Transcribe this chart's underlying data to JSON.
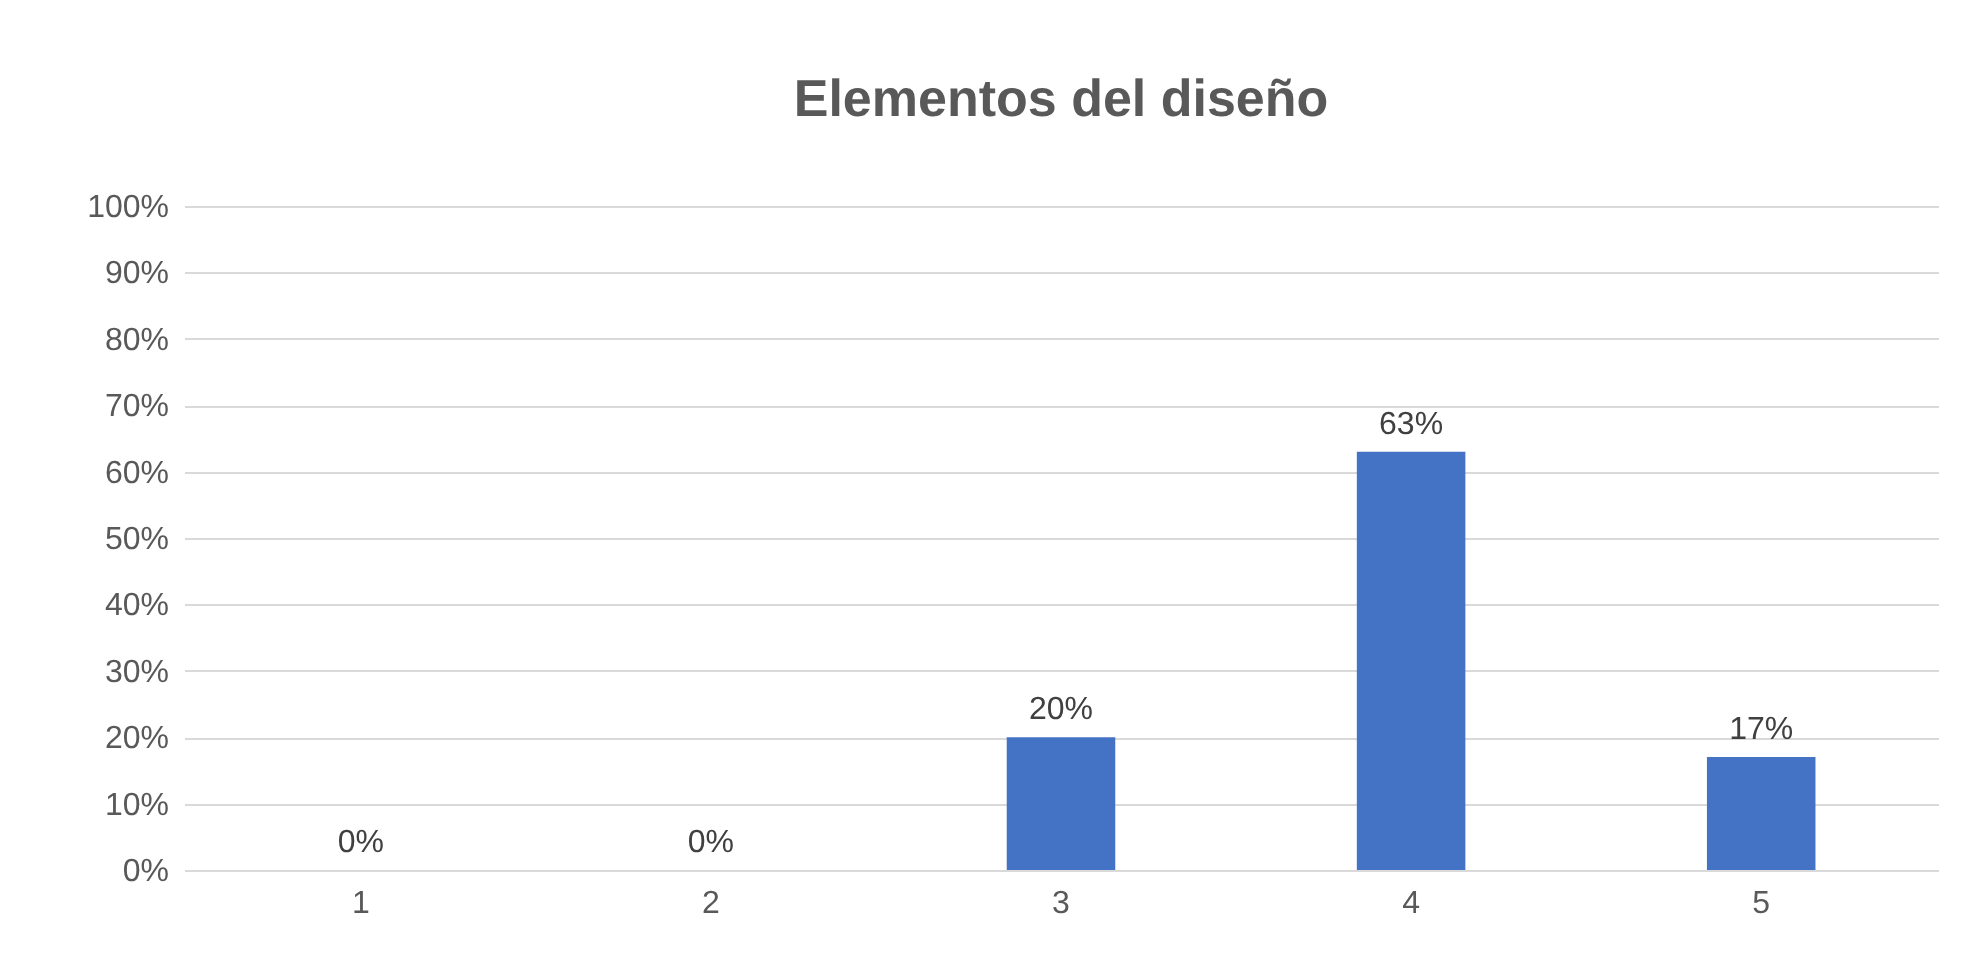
{
  "chart_data": {
    "type": "bar",
    "title": "Elementos del diseño",
    "categories": [
      "1",
      "2",
      "3",
      "4",
      "5"
    ],
    "values": [
      0,
      0,
      20,
      63,
      17
    ],
    "value_labels": [
      "0%",
      "0%",
      "20%",
      "63%",
      "17%"
    ],
    "color": "#4472c4",
    "ylim": [
      0,
      100
    ],
    "yticks": [
      {
        "value": 0,
        "label": "0%"
      },
      {
        "value": 10,
        "label": "10%"
      },
      {
        "value": 20,
        "label": "20%"
      },
      {
        "value": 30,
        "label": "30%"
      },
      {
        "value": 40,
        "label": "40%"
      },
      {
        "value": 50,
        "label": "50%"
      },
      {
        "value": 60,
        "label": "60%"
      },
      {
        "value": 70,
        "label": "70%"
      },
      {
        "value": 80,
        "label": "80%"
      },
      {
        "value": 90,
        "label": "90%"
      },
      {
        "value": 100,
        "label": "100%"
      }
    ],
    "grid": "y"
  }
}
